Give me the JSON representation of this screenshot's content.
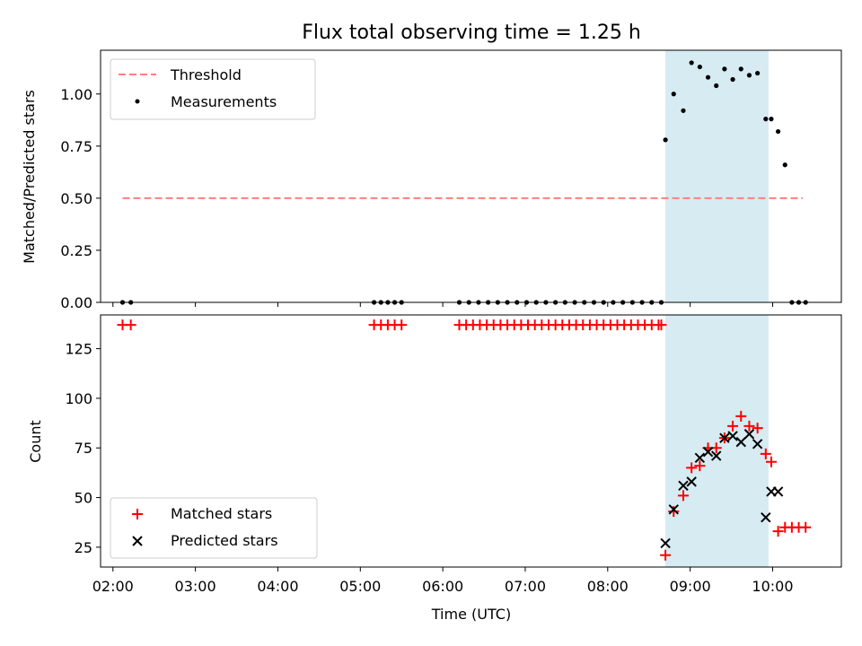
{
  "chart_data": [
    {
      "type": "scatter",
      "title": "Flux total observing time = 1.25 h",
      "ylabel": "Matched/Predicted stars",
      "ylim": [
        0,
        1.21
      ],
      "xlim": [
        "01:51",
        "10:50"
      ],
      "yticks": [
        "0.00",
        "0.25",
        "0.50",
        "0.75",
        "1.00"
      ],
      "shaded_interval": [
        "08:42",
        "09:57"
      ],
      "shade_color": "#add8e6",
      "legend_position": "upper left",
      "threshold": {
        "name": "Threshold",
        "value": 0.5,
        "x_start": "02:07",
        "x_end": "10:22",
        "color": "#ff7f7f",
        "style": "dashed"
      },
      "series": [
        {
          "name": "Measurements",
          "color": "#000000",
          "marker": "dot",
          "x": [
            "02:07",
            "02:13",
            "05:10",
            "05:15",
            "05:20",
            "05:25",
            "05:30",
            "06:12",
            "06:19",
            "06:26",
            "06:33",
            "06:40",
            "06:47",
            "06:54",
            "07:01",
            "07:08",
            "07:15",
            "07:22",
            "07:29",
            "07:36",
            "07:43",
            "07:50",
            "07:57",
            "08:04",
            "08:11",
            "08:18",
            "08:25",
            "08:32",
            "08:39",
            "08:42",
            "08:48",
            "08:55",
            "09:01",
            "09:07",
            "09:13",
            "09:19",
            "09:25",
            "09:31",
            "09:37",
            "09:43",
            "09:49",
            "09:55",
            "09:59",
            "10:04",
            "10:09",
            "10:14",
            "10:19",
            "10:24"
          ],
          "y": [
            0,
            0,
            0,
            0,
            0,
            0,
            0,
            0,
            0,
            0,
            0,
            0,
            0,
            0,
            0,
            0,
            0,
            0,
            0,
            0,
            0,
            0,
            0,
            0,
            0,
            0,
            0,
            0,
            0,
            0.78,
            1.0,
            0.92,
            1.15,
            1.13,
            1.08,
            1.04,
            1.12,
            1.07,
            1.12,
            1.09,
            1.1,
            0.88,
            0.88,
            0.82,
            0.66,
            0,
            0,
            0
          ]
        }
      ]
    },
    {
      "type": "scatter",
      "xlabel": "Time (UTC)",
      "ylabel": "Count",
      "ylim": [
        15,
        142
      ],
      "xlim": [
        "01:51",
        "10:50"
      ],
      "yticks": [
        "25",
        "50",
        "75",
        "100",
        "125"
      ],
      "xticks": [
        "02:00",
        "03:00",
        "04:00",
        "05:00",
        "06:00",
        "07:00",
        "08:00",
        "09:00",
        "10:00"
      ],
      "shaded_interval": [
        "08:42",
        "09:57"
      ],
      "shade_color": "#add8e6",
      "legend_position": "lower left",
      "series": [
        {
          "name": "Matched stars",
          "color": "#ff0000",
          "marker": "plus",
          "x": [
            "02:07",
            "02:13",
            "05:10",
            "05:15",
            "05:20",
            "05:25",
            "05:30",
            "06:12",
            "06:17",
            "06:22",
            "06:27",
            "06:32",
            "06:37",
            "06:42",
            "06:47",
            "06:52",
            "06:57",
            "07:02",
            "07:07",
            "07:12",
            "07:17",
            "07:22",
            "07:27",
            "07:32",
            "07:37",
            "07:42",
            "07:47",
            "07:52",
            "07:57",
            "08:02",
            "08:07",
            "08:12",
            "08:17",
            "08:22",
            "08:27",
            "08:32",
            "08:37",
            "08:39",
            "08:42",
            "08:48",
            "08:55",
            "09:01",
            "09:07",
            "09:13",
            "09:19",
            "09:25",
            "09:31",
            "09:37",
            "09:43",
            "09:49",
            "09:55",
            "09:59",
            "10:04",
            "10:09",
            "10:14",
            "10:19",
            "10:24"
          ],
          "y": [
            137,
            137,
            137,
            137,
            137,
            137,
            137,
            137,
            137,
            137,
            137,
            137,
            137,
            137,
            137,
            137,
            137,
            137,
            137,
            137,
            137,
            137,
            137,
            137,
            137,
            137,
            137,
            137,
            137,
            137,
            137,
            137,
            137,
            137,
            137,
            137,
            137,
            137,
            21,
            43,
            51,
            65,
            66,
            75,
            75,
            80,
            86,
            91,
            86,
            85,
            72,
            68,
            33,
            35,
            35,
            35,
            35
          ]
        },
        {
          "name": "Predicted stars",
          "color": "#000000",
          "marker": "x",
          "x": [
            "08:42",
            "08:48",
            "08:55",
            "09:01",
            "09:07",
            "09:13",
            "09:19",
            "09:25",
            "09:31",
            "09:37",
            "09:43",
            "09:49",
            "09:55",
            "09:59",
            "10:04"
          ],
          "y": [
            27,
            44,
            56,
            58,
            70,
            73,
            71,
            80,
            81,
            78,
            82,
            77,
            40,
            53,
            53
          ]
        }
      ]
    }
  ]
}
